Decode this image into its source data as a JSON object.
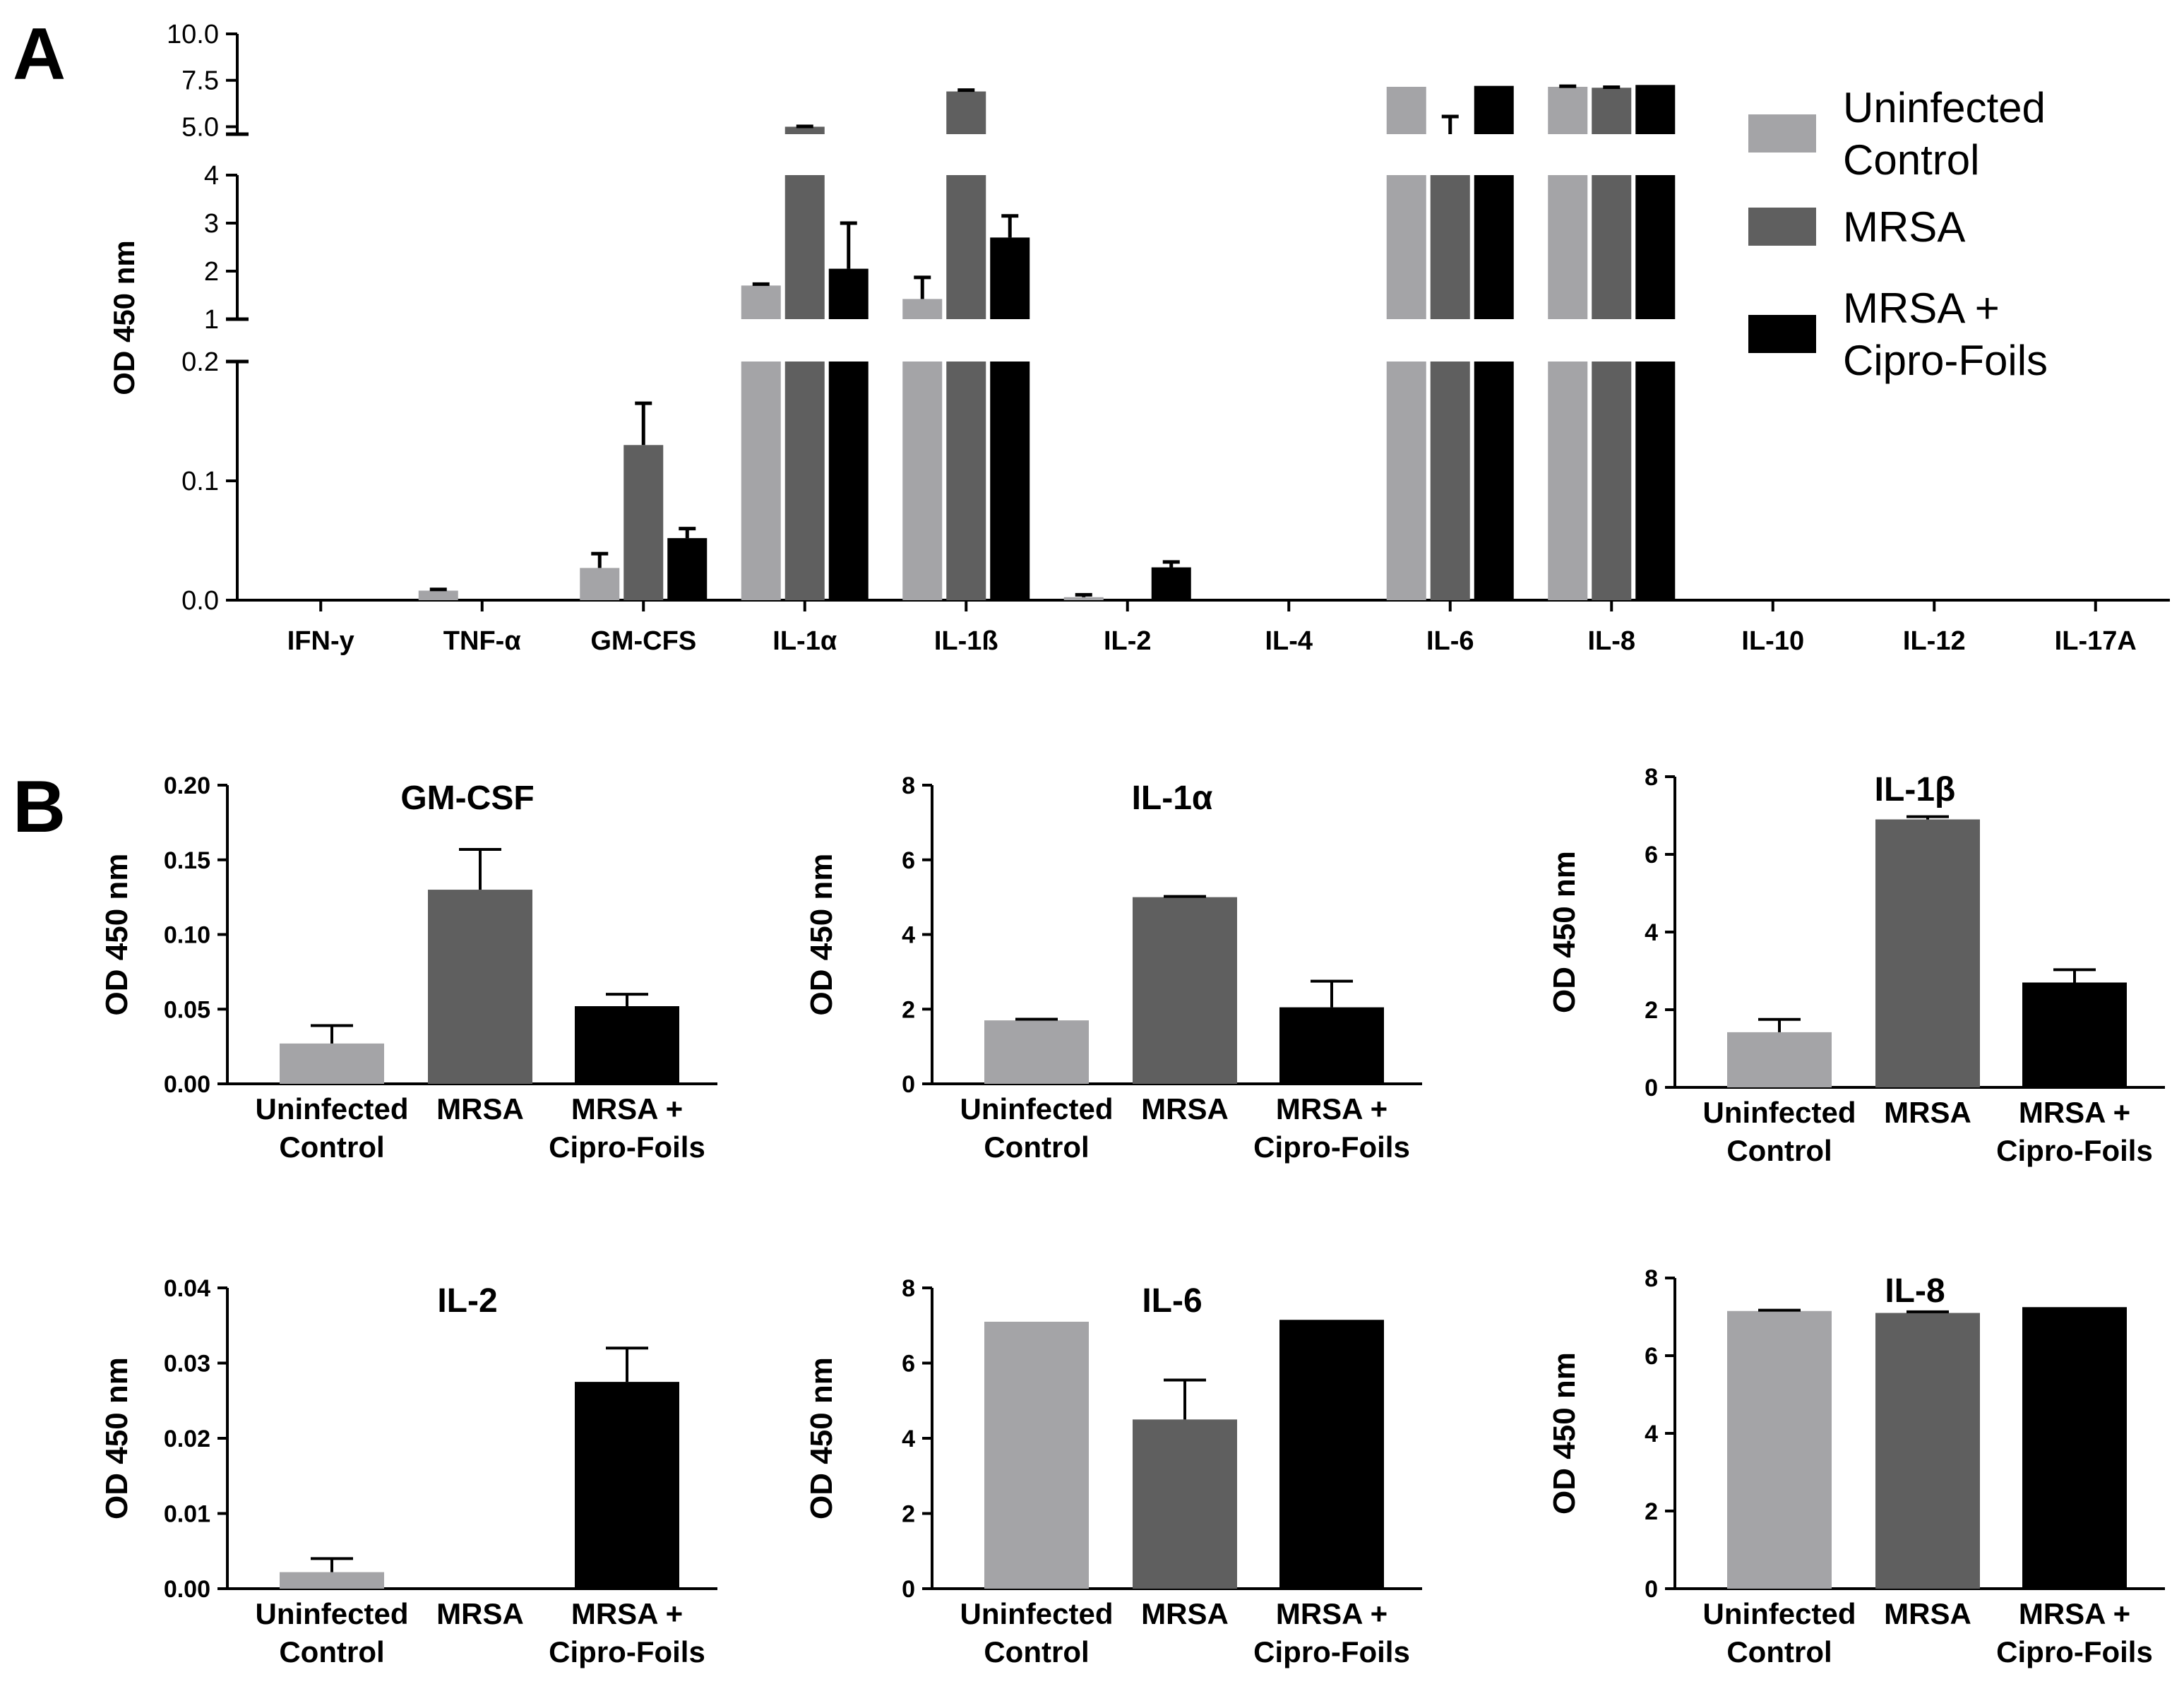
{
  "colors": {
    "uninfected": "#a4a4a7",
    "mrsa": "#5f5f5f",
    "cipro": "#000000"
  },
  "legend": {
    "items": [
      {
        "key": "uninfected",
        "lines": [
          "Uninfected",
          "Control"
        ]
      },
      {
        "key": "mrsa",
        "lines": [
          "MRSA"
        ]
      },
      {
        "key": "cipro",
        "lines": [
          "MRSA +",
          "Cipro-Foils"
        ]
      }
    ]
  },
  "chart_data": [
    {
      "panel_label": "A",
      "type": "bar",
      "title": "",
      "ylabel": "OD 450 nm",
      "xlabel": "",
      "y_segments": [
        {
          "range": [
            0,
            0.2
          ],
          "ticks": [
            "0.0",
            "0.1",
            "0.2"
          ],
          "tick_values": [
            0,
            0.1,
            0.2
          ]
        },
        {
          "range": [
            1,
            4
          ],
          "ticks": [
            "1",
            "2",
            "3",
            "4"
          ],
          "tick_values": [
            1,
            2,
            3,
            4
          ]
        },
        {
          "range": [
            4.6,
            10
          ],
          "ticks": [
            "5.0",
            "7.5",
            "10.0"
          ],
          "tick_values": [
            5,
            7.5,
            10
          ]
        }
      ],
      "categories": [
        "IFN-y",
        "TNF-α",
        "GM-CFS",
        "IL-1α",
        "IL-1ß",
        "IL-2",
        "IL-4",
        "IL-6",
        "IL-8",
        "IL-10",
        "IL-12",
        "IL-17A"
      ],
      "series": [
        {
          "name": "Uninfected Control",
          "key": "uninfected",
          "values": [
            0,
            0.008,
            0.027,
            1.7,
            1.42,
            0.0025,
            0,
            7.15,
            7.15,
            0,
            0,
            0
          ],
          "errors": [
            0,
            0.001,
            0.012,
            0.03,
            0.45,
            0.002,
            0,
            0,
            0.03,
            0,
            0,
            0
          ]
        },
        {
          "name": "MRSA",
          "key": "mrsa",
          "values": [
            0,
            0,
            0.13,
            5.0,
            6.9,
            0,
            0,
            4.5,
            7.1,
            0,
            0,
            0
          ],
          "errors": [
            0,
            0,
            0.035,
            0.02,
            0.07,
            0,
            0,
            1.05,
            0.03,
            0,
            0,
            0
          ]
        },
        {
          "name": "MRSA + Cipro-Foils",
          "key": "cipro",
          "values": [
            0,
            0,
            0.052,
            2.05,
            2.7,
            0.0275,
            0,
            7.2,
            7.25,
            0,
            0,
            0
          ],
          "errors": [
            0,
            0,
            0.008,
            0.95,
            0.45,
            0.0045,
            0,
            0,
            0,
            0,
            0,
            0
          ]
        }
      ]
    },
    {
      "panel_label": "B",
      "type": "bar",
      "title": "GM-CSF",
      "ylabel": "OD 450 nm",
      "xlabel": "",
      "ylim": [
        0,
        0.2
      ],
      "yticks": [
        "0.00",
        "0.05",
        "0.10",
        "0.15",
        "0.20"
      ],
      "ytick_values": [
        0,
        0.05,
        0.1,
        0.15,
        0.2
      ],
      "categories": [
        [
          "Uninfected",
          "Control"
        ],
        [
          "MRSA"
        ],
        [
          "MRSA +",
          "Cipro-Foils"
        ]
      ],
      "values": [
        0.027,
        0.13,
        0.052
      ],
      "errors": [
        0.012,
        0.027,
        0.008
      ]
    },
    {
      "type": "bar",
      "title": "IL-1α",
      "ylabel": "OD 450 nm",
      "xlabel": "",
      "ylim": [
        0,
        8
      ],
      "yticks": [
        "0",
        "2",
        "4",
        "6",
        "8"
      ],
      "ytick_values": [
        0,
        2,
        4,
        6,
        8
      ],
      "categories": [
        [
          "Uninfected",
          "Control"
        ],
        [
          "MRSA"
        ],
        [
          "MRSA +",
          "Cipro-Foils"
        ]
      ],
      "values": [
        1.7,
        5.0,
        2.05
      ],
      "errors": [
        0.03,
        0.02,
        0.7
      ]
    },
    {
      "type": "bar",
      "title": "IL-1β",
      "ylabel": "OD 450 nm",
      "xlabel": "",
      "ylim": [
        0,
        8
      ],
      "yticks": [
        "0",
        "2",
        "4",
        "6",
        "8"
      ],
      "ytick_values": [
        0,
        2,
        4,
        6,
        8
      ],
      "categories": [
        [
          "Uninfected",
          "Control"
        ],
        [
          "MRSA"
        ],
        [
          "MRSA +",
          "Cipro-Foils"
        ]
      ],
      "values": [
        1.42,
        6.9,
        2.7
      ],
      "errors": [
        0.33,
        0.07,
        0.33
      ]
    },
    {
      "type": "bar",
      "title": "IL-2",
      "ylabel": "OD 450 nm",
      "xlabel": "",
      "ylim": [
        0,
        0.04
      ],
      "yticks": [
        "0.00",
        "0.01",
        "0.02",
        "0.03",
        "0.04"
      ],
      "ytick_values": [
        0,
        0.01,
        0.02,
        0.03,
        0.04
      ],
      "categories": [
        [
          "Uninfected",
          "Control"
        ],
        [
          "MRSA"
        ],
        [
          "MRSA +",
          "Cipro-Foils"
        ]
      ],
      "values": [
        0.0022,
        0,
        0.0275
      ],
      "errors": [
        0.0018,
        0,
        0.0045
      ]
    },
    {
      "type": "bar",
      "title": "IL-6",
      "ylabel": "OD 450 nm",
      "xlabel": "",
      "ylim": [
        0,
        8
      ],
      "yticks": [
        "0",
        "2",
        "4",
        "6",
        "8"
      ],
      "ytick_values": [
        0,
        2,
        4,
        6,
        8
      ],
      "categories": [
        [
          "Uninfected",
          "Control"
        ],
        [
          "MRSA"
        ],
        [
          "MRSA +",
          "Cipro-Foils"
        ]
      ],
      "values": [
        7.1,
        4.5,
        7.15
      ],
      "errors": [
        0,
        1.05,
        0
      ]
    },
    {
      "type": "bar",
      "title": "IL-8",
      "ylabel": "OD 450 nm",
      "xlabel": "",
      "ylim": [
        0,
        8
      ],
      "yticks": [
        "0",
        "2",
        "4",
        "6",
        "8"
      ],
      "ytick_values": [
        0,
        2,
        4,
        6,
        8
      ],
      "categories": [
        [
          "Uninfected",
          "Control"
        ],
        [
          "MRSA"
        ],
        [
          "MRSA +",
          "Cipro-Foils"
        ]
      ],
      "values": [
        7.15,
        7.1,
        7.25
      ],
      "errors": [
        0.02,
        0.03,
        0
      ]
    }
  ]
}
